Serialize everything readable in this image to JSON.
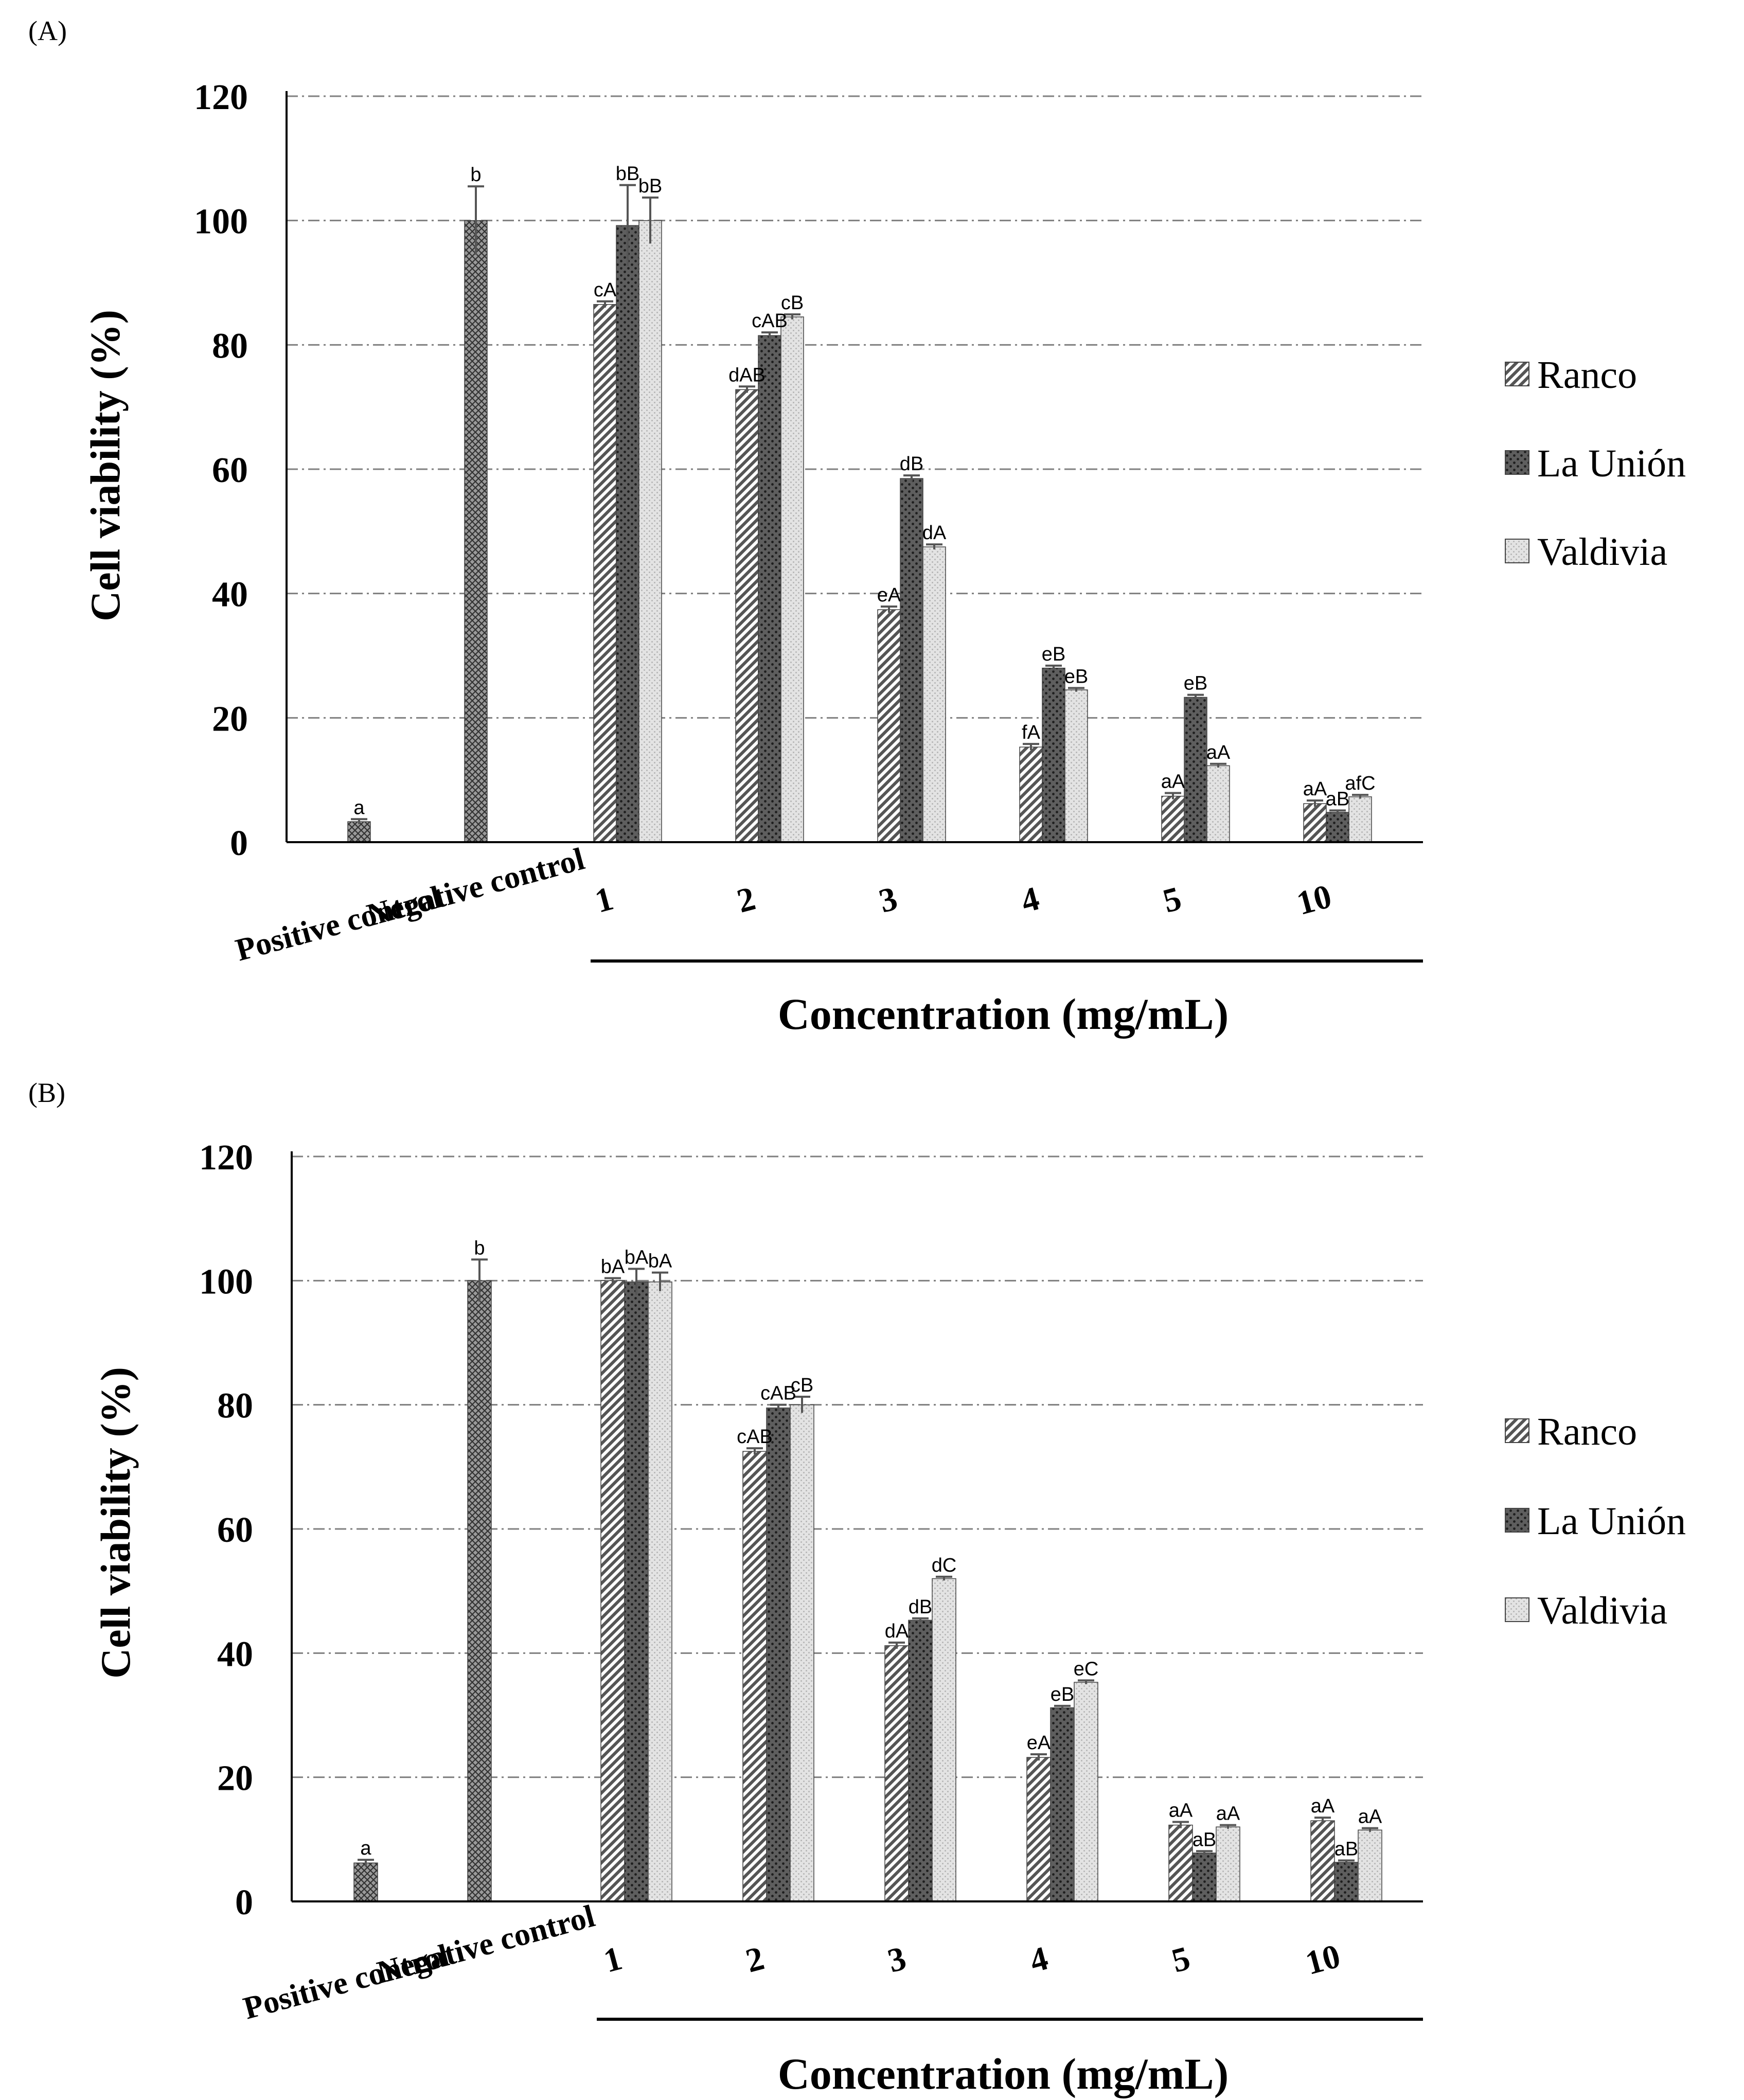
{
  "legend": [
    {
      "name": "Ranco",
      "pattern": "diag"
    },
    {
      "name": "La Unión",
      "pattern": "dots"
    },
    {
      "name": "Valdivia",
      "pattern": "fine"
    }
  ],
  "colors": {
    "ranco_bg": "#ffffff",
    "ranco_stripe": "#555555",
    "launion_bg": "#5e5e5e",
    "launion_dot": "#1e1e1e",
    "valdivia_bg": "#e3e3e3",
    "valdivia_dot": "#b4b4b4",
    "control_bg": "#9a9a9a",
    "grid": "#7f7f7f",
    "errorbar": "#555555",
    "axis": "#000000"
  },
  "chart_data": [
    {
      "panel": "(A)",
      "type": "bar",
      "ylabel": "Cell viability (%)",
      "xlabel": "Concentration (mg/mL)",
      "ylim": [
        0,
        120
      ],
      "yticks": [
        0,
        20,
        40,
        60,
        80,
        100,
        120
      ],
      "grid": true,
      "controls": [
        {
          "label": "Positive control",
          "value": 3.3,
          "error": 0.4,
          "sig": "a"
        },
        {
          "label": "Negative control",
          "value": 100,
          "error": 5.5,
          "sig": "b"
        }
      ],
      "categories": [
        "1",
        "2",
        "3",
        "4",
        "5",
        "10"
      ],
      "series": [
        {
          "name": "Ranco",
          "values": [
            86.5,
            72.8,
            37.4,
            15.3,
            7.4,
            6.2
          ],
          "errors": [
            0.5,
            0.5,
            0.5,
            0.5,
            0.5,
            0.5
          ],
          "sig": [
            "cA",
            "dAB",
            "eA",
            "fA",
            "aA",
            "aA"
          ]
        },
        {
          "name": "La Unión",
          "values": [
            99.2,
            81.5,
            58.5,
            28.0,
            23.3,
            4.8
          ],
          "errors": [
            6.5,
            0.5,
            0.5,
            0.4,
            0.4,
            0.3
          ],
          "sig": [
            "bB",
            "cAB",
            "dB",
            "eB",
            "eB",
            "aB"
          ]
        },
        {
          "name": "Valdivia",
          "values": [
            100.0,
            84.5,
            47.5,
            24.5,
            12.3,
            7.3
          ],
          "errors": [
            3.7,
            0.4,
            0.4,
            0.3,
            0.3,
            0.3
          ],
          "sig": [
            "bB",
            "cB",
            "dA",
            "eB",
            "aA",
            "afC"
          ]
        }
      ]
    },
    {
      "panel": "(B)",
      "type": "bar",
      "ylabel": "Cell viability (%)",
      "xlabel": "Concentration (mg/mL)",
      "ylim": [
        0,
        120
      ],
      "yticks": [
        0,
        20,
        40,
        60,
        80,
        100,
        120
      ],
      "grid": true,
      "controls": [
        {
          "label": "Positive control",
          "value": 6.2,
          "error": 0.5,
          "sig": "a"
        },
        {
          "label": "Negative control",
          "value": 100,
          "error": 3.4,
          "sig": "b"
        }
      ],
      "categories": [
        "1",
        "2",
        "3",
        "4",
        "5",
        "10"
      ],
      "series": [
        {
          "name": "Ranco",
          "values": [
            100.0,
            72.5,
            41.2,
            23.2,
            12.3,
            13.0
          ],
          "errors": [
            0.4,
            0.5,
            0.5,
            0.5,
            0.5,
            0.5
          ],
          "sig": [
            "bA",
            "cAB",
            "dA",
            "eA",
            "aA",
            "aA"
          ]
        },
        {
          "name": "La Unión",
          "values": [
            99.8,
            79.5,
            45.3,
            31.2,
            7.8,
            6.3
          ],
          "errors": [
            2.1,
            0.5,
            0.3,
            0.3,
            0.3,
            0.3
          ],
          "sig": [
            "bA",
            "cAB",
            "dB",
            "eB",
            "aB",
            "aB"
          ]
        },
        {
          "name": "Valdivia",
          "values": [
            99.8,
            80.0,
            52.0,
            35.3,
            12.0,
            11.5
          ],
          "errors": [
            1.5,
            1.3,
            0.3,
            0.3,
            0.3,
            0.3
          ],
          "sig": [
            "bA",
            "cB",
            "dC",
            "eC",
            "aA",
            "aA"
          ]
        }
      ]
    }
  ]
}
